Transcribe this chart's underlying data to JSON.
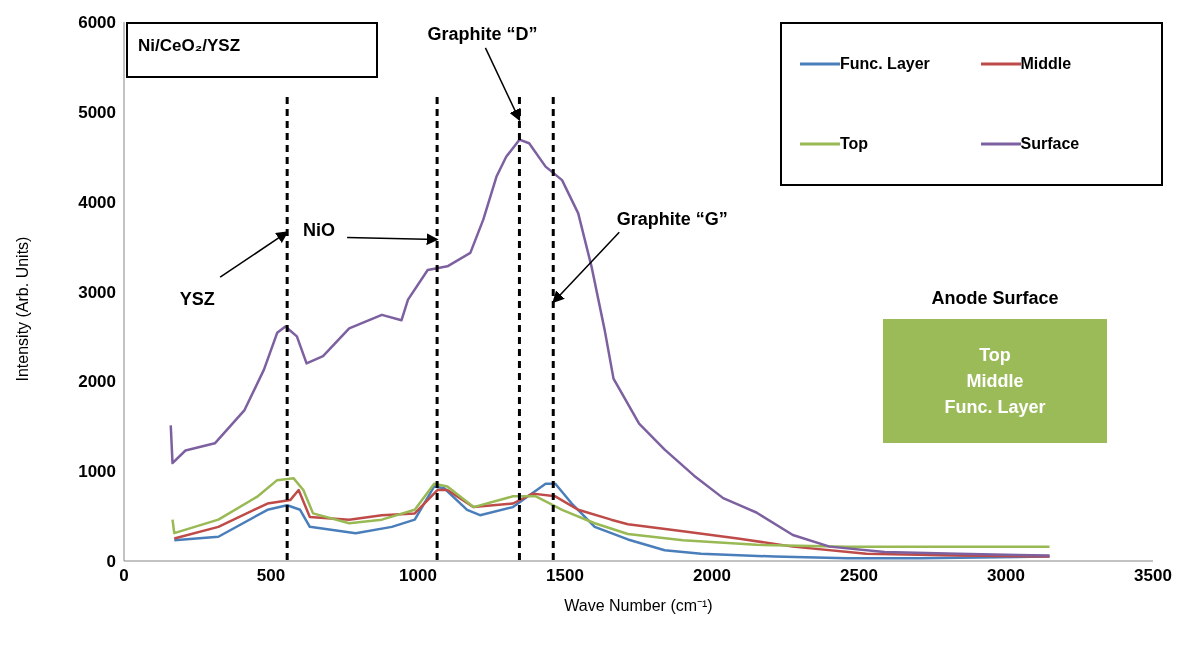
{
  "chart_data": {
    "type": "line",
    "title": "Ni/CeO₂/YSZ",
    "xlabel": "Wave Number (cm⁻¹)",
    "ylabel": "Intensity (Arb. Units)",
    "xlim": [
      0,
      3500
    ],
    "xticks": [
      0,
      500,
      1000,
      1500,
      2000,
      2500,
      3000,
      3500
    ],
    "ylim": [
      0,
      6000
    ],
    "yticks": [
      0,
      1000,
      2000,
      3000,
      4000,
      5000,
      6000
    ],
    "grid": false,
    "legend": "top right",
    "series": [
      {
        "name": "Func. Layer",
        "color": "#4a7ebb",
        "x": [
          171,
          321,
          488,
          555,
          599,
          632,
          788,
          911,
          989,
          1055,
          1089,
          1167,
          1211,
          1323,
          1434,
          1467,
          1523,
          1601,
          1714,
          1839,
          1963,
          2212,
          2461,
          2710,
          3148
        ],
        "values": [
          230,
          270,
          570,
          620,
          570,
          380,
          310,
          380,
          460,
          830,
          810,
          570,
          510,
          600,
          860,
          860,
          640,
          380,
          240,
          120,
          80,
          50,
          30,
          30,
          50
        ]
      },
      {
        "name": "Middle",
        "color": "#be4b48",
        "x": [
          171,
          321,
          488,
          566,
          594,
          632,
          766,
          877,
          989,
          1066,
          1100,
          1189,
          1323,
          1390,
          1467,
          1545,
          1657,
          1714,
          1901,
          2088,
          2275,
          2525,
          2836,
          3148
        ],
        "values": [
          250,
          380,
          640,
          680,
          790,
          490,
          460,
          510,
          530,
          790,
          790,
          600,
          640,
          750,
          720,
          570,
          460,
          410,
          330,
          250,
          160,
          80,
          60,
          50
        ]
      },
      {
        "name": "Top",
        "color": "#98b954",
        "x": [
          165,
          171,
          321,
          455,
          521,
          577,
          610,
          643,
          766,
          877,
          989,
          1055,
          1100,
          1189,
          1323,
          1401,
          1490,
          1601,
          1714,
          1901,
          2151,
          2461,
          2836,
          3148
        ],
        "values": [
          460,
          310,
          460,
          720,
          900,
          920,
          790,
          530,
          420,
          460,
          570,
          860,
          830,
          600,
          720,
          720,
          570,
          420,
          300,
          230,
          180,
          160,
          160,
          160
        ]
      },
      {
        "name": "Surface",
        "color": "#7d60a0",
        "x": [
          159,
          165,
          209,
          309,
          410,
          476,
          521,
          549,
          588,
          621,
          677,
          766,
          877,
          944,
          966,
          1033,
          1100,
          1178,
          1222,
          1267,
          1300,
          1345,
          1378,
          1434,
          1490,
          1545,
          1590,
          1635,
          1665,
          1752,
          1839,
          1939,
          2038,
          2151,
          2275,
          2400,
          2587,
          2836,
          3148
        ],
        "values": [
          1510,
          1090,
          1230,
          1310,
          1680,
          2130,
          2540,
          2610,
          2500,
          2200,
          2280,
          2590,
          2740,
          2680,
          2910,
          3240,
          3280,
          3430,
          3800,
          4280,
          4500,
          4690,
          4650,
          4390,
          4240,
          3870,
          3280,
          2570,
          2030,
          1530,
          1240,
          950,
          700,
          540,
          290,
          160,
          100,
          80,
          60
        ]
      }
    ],
    "ref_lines": [
      {
        "axis": "x",
        "value": 555,
        "color": "#000000",
        "line_style": "dashed"
      },
      {
        "axis": "x",
        "value": 1065,
        "color": "#000000",
        "line_style": "dashed"
      },
      {
        "axis": "x",
        "value": 1345,
        "color": "#000000",
        "line_style": "dashed"
      },
      {
        "axis": "x",
        "value": 1460,
        "color": "#000000",
        "line_style": "dashed"
      }
    ],
    "annotations": [
      {
        "text": "YSZ",
        "x": 555,
        "y": 3660
      },
      {
        "text": "NiO",
        "x": 1065,
        "y": 3580
      },
      {
        "text": "Graphite “D”",
        "x": 1345,
        "y": 4910
      },
      {
        "text": "Graphite “G”",
        "x": 1460,
        "y": 2880
      },
      "Anode Surface",
      "Top",
      "Middle",
      "Func. Layer"
    ]
  }
}
